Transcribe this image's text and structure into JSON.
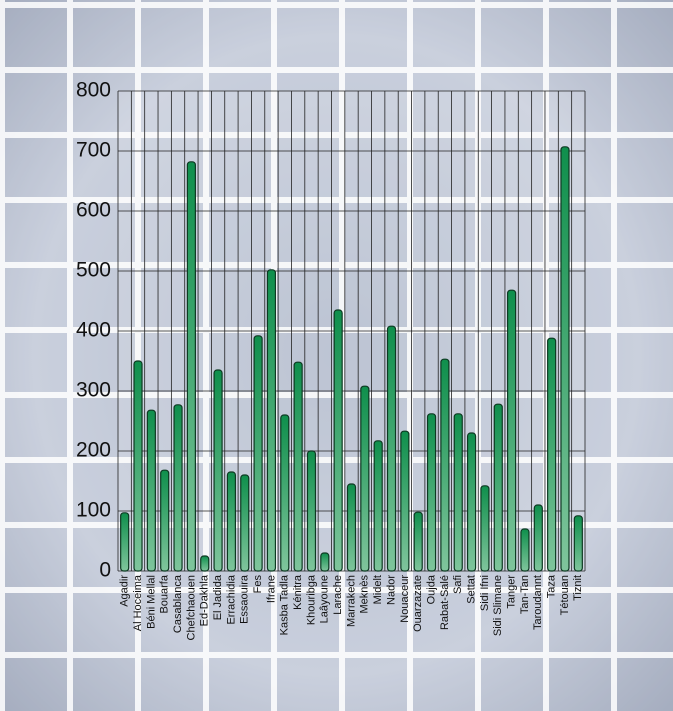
{
  "chart_data": {
    "type": "bar",
    "categories": [
      "Agadir",
      "Al Hoceima",
      "Béni Mellal",
      "Bouarfa",
      "Casablanca",
      "Chefchaouen",
      "Ed-Dakhla",
      "El Jadida",
      "Errachidia",
      "Essaouira",
      "Fes",
      "Ifrane",
      "Kasba Tadla",
      "Kénitra",
      "Khouribga",
      "Laâyoune",
      "Larache",
      "Marrakech",
      "Meknès",
      "Midelt",
      "Nador",
      "Nouaceur",
      "Ouarzazate",
      "Oujda",
      "Rabat-Salé",
      "Safi",
      "Settat",
      "Sidi Ifni",
      "Sidi Slimane",
      "Tanger",
      "Tan-Tan",
      "Taroudannt",
      "Taza",
      "Tétouan",
      "Tiznit"
    ],
    "values": [
      97,
      350,
      268,
      168,
      277,
      682,
      25,
      335,
      165,
      160,
      392,
      502,
      260,
      348,
      200,
      30,
      435,
      145,
      308,
      217,
      408,
      233,
      98,
      262,
      353,
      262,
      230,
      142,
      278,
      468,
      70,
      110,
      388,
      707,
      92
    ],
    "color": "#139a55",
    "ylim": [
      0,
      800
    ],
    "yticks": [
      0,
      100,
      200,
      300,
      400,
      500,
      600,
      700,
      800
    ],
    "grid": true
  }
}
